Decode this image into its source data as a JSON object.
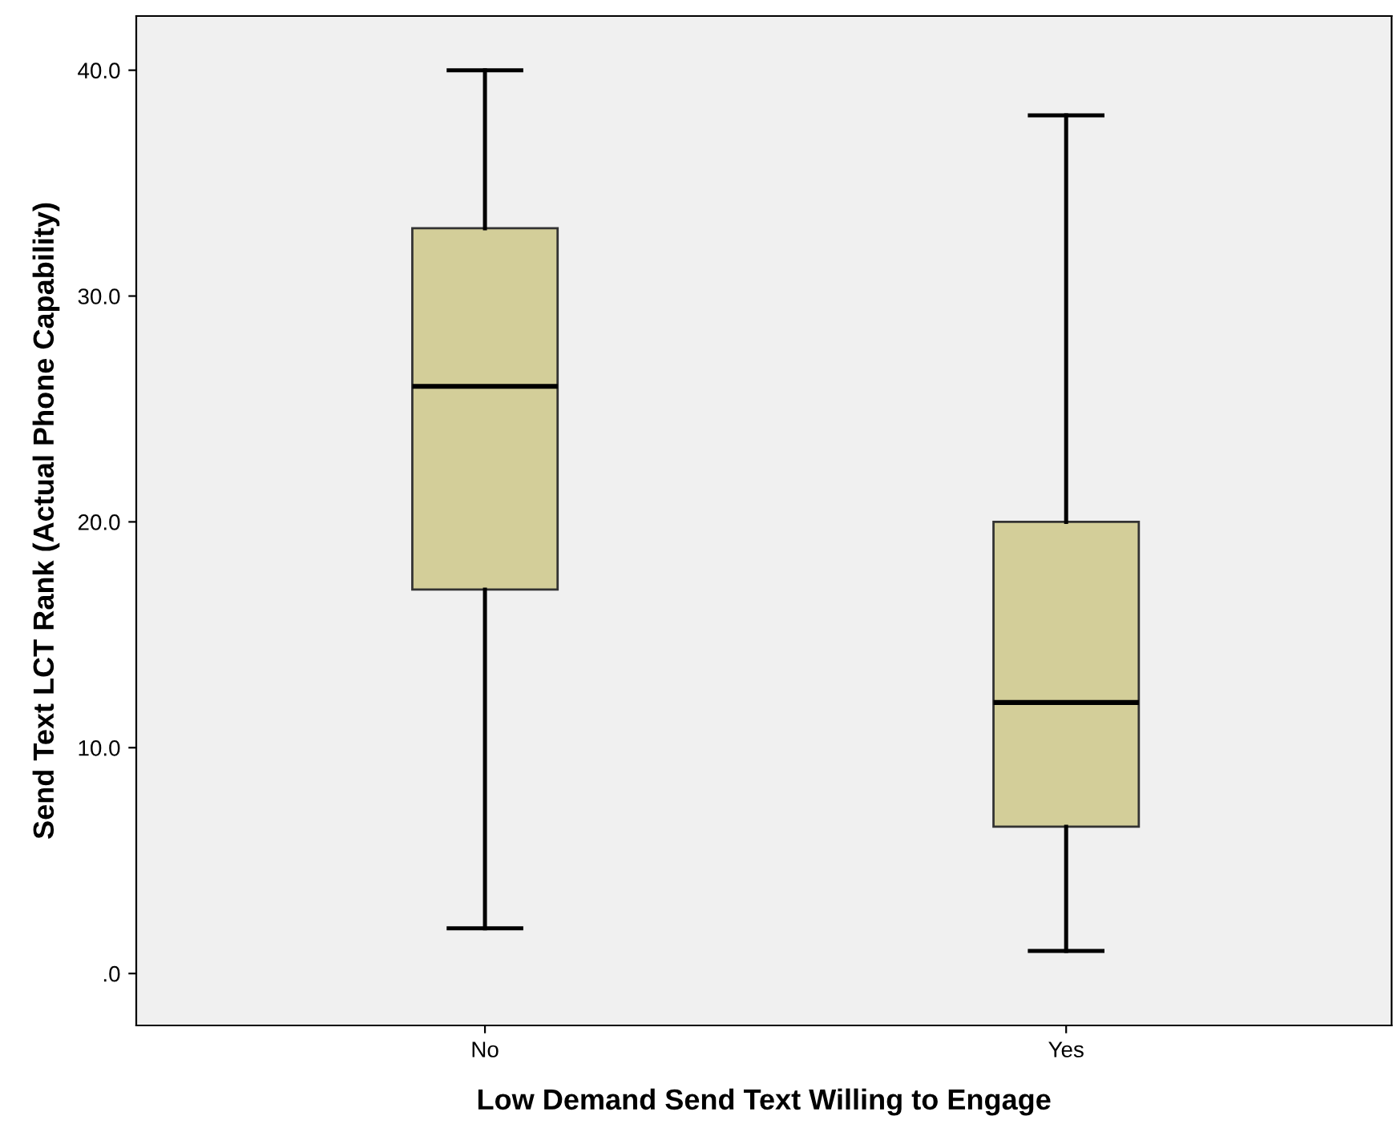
{
  "chart_data": {
    "type": "box",
    "xlabel": "Low Demand Send Text Willing to Engage",
    "ylabel": "Send Text LCT Rank (Actual Phone Capability)",
    "categories": [
      "No",
      "Yes"
    ],
    "color": "#d3ce99",
    "boxes": [
      {
        "low": 2,
        "q1": 17,
        "median": 26,
        "q3": 33,
        "high": 40
      },
      {
        "low": 1,
        "q1": 6.5,
        "median": 12,
        "q3": 20,
        "high": 38
      }
    ],
    "ylim": [
      -2.3,
      42.4
    ],
    "yticks": [
      {
        "value": 0,
        "label": ".0"
      },
      {
        "value": 10,
        "label": "10.0"
      },
      {
        "value": 20,
        "label": "20.0"
      },
      {
        "value": 30,
        "label": "30.0"
      },
      {
        "value": 40,
        "label": "40.0"
      }
    ],
    "grid": false
  }
}
